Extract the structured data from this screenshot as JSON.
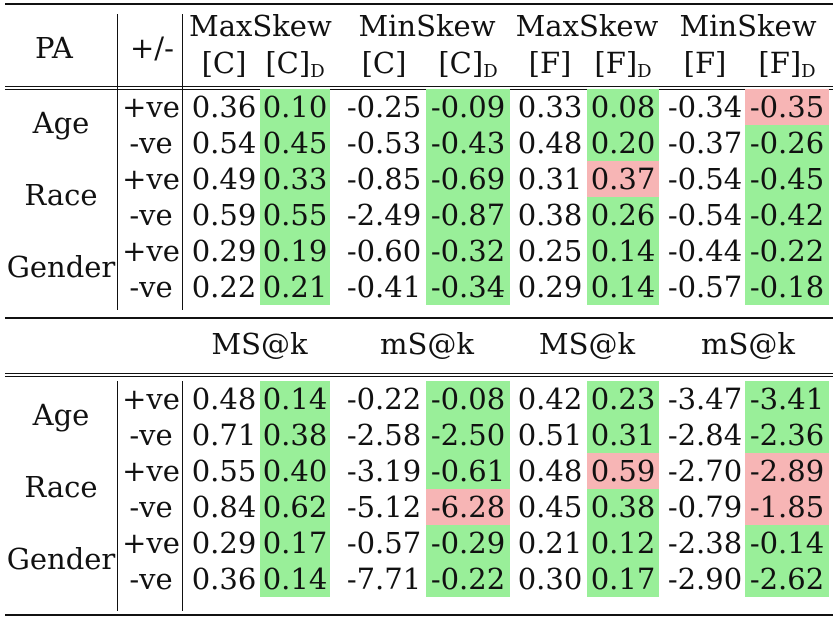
{
  "header": {
    "pa": "PA",
    "sign": "+/-",
    "top_groups": [
      {
        "metric": "MaxSkew",
        "cols": [
          "[C]",
          "[C]",
          "D"
        ]
      },
      {
        "metric": "MinSkew",
        "cols": [
          "[C]",
          "[C]",
          "D"
        ]
      },
      {
        "metric": "MaxSkew",
        "cols": [
          "[F]",
          "[F]",
          "D"
        ]
      },
      {
        "metric": "MinSkew",
        "cols": [
          "[F]",
          "[F]",
          "D"
        ]
      }
    ],
    "bottom_groups": [
      "MS@k",
      "mS@k",
      "MS@k",
      "mS@k"
    ]
  },
  "groups": [
    "Age",
    "Race",
    "Gender"
  ],
  "signs": [
    "+ve",
    "-ve",
    "+ve",
    "-ve",
    "+ve",
    "-ve"
  ],
  "top_rows": [
    [
      "0.36",
      "0.10",
      "-0.25",
      "-0.09",
      "0.33",
      "0.08",
      "-0.34",
      "-0.35"
    ],
    [
      "0.54",
      "0.45",
      "-0.53",
      "-0.43",
      "0.48",
      "0.20",
      "-0.37",
      "-0.26"
    ],
    [
      "0.49",
      "0.33",
      "-0.85",
      "-0.69",
      "0.31",
      "0.37",
      "-0.54",
      "-0.45"
    ],
    [
      "0.59",
      "0.55",
      "-2.49",
      "-0.87",
      "0.38",
      "0.26",
      "-0.54",
      "-0.42"
    ],
    [
      "0.29",
      "0.19",
      "-0.60",
      "-0.32",
      "0.25",
      "0.14",
      "-0.44",
      "-0.22"
    ],
    [
      "0.22",
      "0.21",
      "-0.41",
      "-0.34",
      "0.29",
      "0.14",
      "-0.57",
      "-0.18"
    ]
  ],
  "top_highlight": [
    [
      "",
      "g",
      "",
      "g",
      "",
      "g",
      "",
      "r"
    ],
    [
      "",
      "g",
      "",
      "g",
      "",
      "g",
      "",
      "g"
    ],
    [
      "",
      "g",
      "",
      "g",
      "",
      "r",
      "",
      "g"
    ],
    [
      "",
      "g",
      "",
      "g",
      "",
      "g",
      "",
      "g"
    ],
    [
      "",
      "g",
      "",
      "g",
      "",
      "g",
      "",
      "g"
    ],
    [
      "",
      "g",
      "",
      "g",
      "",
      "g",
      "",
      "g"
    ]
  ],
  "bottom_rows": [
    [
      "0.48",
      "0.14",
      "-0.22",
      "-0.08",
      "0.42",
      "0.23",
      "-3.47",
      "-3.41"
    ],
    [
      "0.71",
      "0.38",
      "-2.58",
      "-2.50",
      "0.51",
      "0.31",
      "-2.84",
      "-2.36"
    ],
    [
      "0.55",
      "0.40",
      "-3.19",
      "-0.61",
      "0.48",
      "0.59",
      "-2.70",
      "-2.89"
    ],
    [
      "0.84",
      "0.62",
      "-5.12",
      "-6.28",
      "0.45",
      "0.38",
      "-0.79",
      "-1.85"
    ],
    [
      "0.29",
      "0.17",
      "-0.57",
      "-0.29",
      "0.21",
      "0.12",
      "-2.38",
      "-0.14"
    ],
    [
      "0.36",
      "0.14",
      "-7.71",
      "-0.22",
      "0.30",
      "0.17",
      "-2.90",
      "-2.62"
    ]
  ],
  "bottom_highlight": [
    [
      "",
      "g",
      "",
      "g",
      "",
      "g",
      "",
      "g"
    ],
    [
      "",
      "g",
      "",
      "g",
      "",
      "g",
      "",
      "g"
    ],
    [
      "",
      "g",
      "",
      "g",
      "",
      "r",
      "",
      "r"
    ],
    [
      "",
      "g",
      "",
      "r",
      "",
      "g",
      "",
      "r"
    ],
    [
      "",
      "g",
      "",
      "g",
      "",
      "g",
      "",
      "g"
    ],
    [
      "",
      "g",
      "",
      "g",
      "",
      "g",
      "",
      "g"
    ]
  ],
  "colors": {
    "improved": "#99ef99",
    "worsened": "#f7b5b5"
  }
}
